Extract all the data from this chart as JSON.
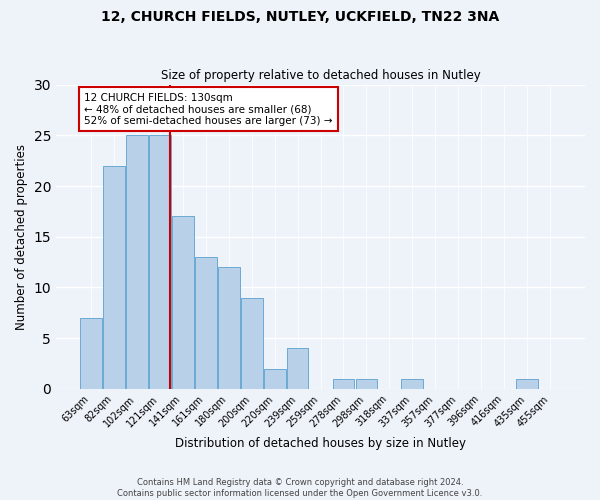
{
  "title1": "12, CHURCH FIELDS, NUTLEY, UCKFIELD, TN22 3NA",
  "title2": "Size of property relative to detached houses in Nutley",
  "xlabel": "Distribution of detached houses by size in Nutley",
  "ylabel": "Number of detached properties",
  "categories": [
    "63sqm",
    "82sqm",
    "102sqm",
    "121sqm",
    "141sqm",
    "161sqm",
    "180sqm",
    "200sqm",
    "220sqm",
    "239sqm",
    "259sqm",
    "278sqm",
    "298sqm",
    "318sqm",
    "337sqm",
    "357sqm",
    "377sqm",
    "396sqm",
    "416sqm",
    "435sqm",
    "455sqm"
  ],
  "values": [
    7,
    22,
    25,
    25,
    17,
    13,
    12,
    9,
    2,
    4,
    0,
    1,
    1,
    0,
    1,
    0,
    0,
    0,
    0,
    1,
    0
  ],
  "bar_color": "#b8d0e8",
  "bar_edgecolor": "#6aaad4",
  "background_color": "#eef2f9",
  "grid_color": "#ffffff",
  "vline_color": "#cc0000",
  "annotation_text": "12 CHURCH FIELDS: 130sqm\n← 48% of detached houses are smaller (68)\n52% of semi-detached houses are larger (73) →",
  "annotation_box_edgecolor": "#cc0000",
  "footer1": "Contains HM Land Registry data © Crown copyright and database right 2024.",
  "footer2": "Contains public sector information licensed under the Open Government Licence v3.0.",
  "ylim": [
    0,
    30
  ],
  "yticks": [
    0,
    5,
    10,
    15,
    20,
    25,
    30
  ]
}
